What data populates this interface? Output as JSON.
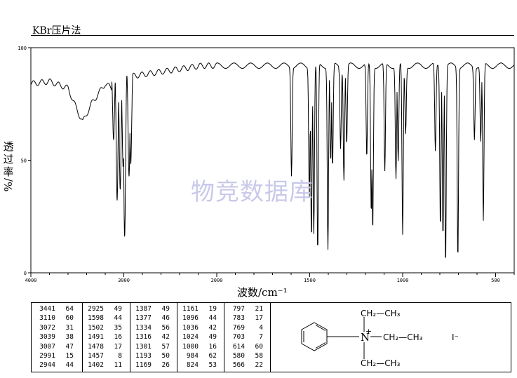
{
  "header": {
    "method": "KBr压片法"
  },
  "watermark": "物竞数据库",
  "chart_data": {
    "type": "line",
    "title": "",
    "xlabel": "波数/cm⁻¹",
    "ylabel_chars": [
      "透",
      "过",
      "率"
    ],
    "ylabel_unit": "%/",
    "xlim": [
      4000,
      400
    ],
    "ylim": [
      0,
      100
    ],
    "x_ticks": [
      "4000",
      "3000",
      "2000",
      "1500",
      "1000",
      "500"
    ],
    "y_ticks": [
      "0",
      "50",
      "100"
    ],
    "x_breaks": [
      2000
    ],
    "grid": false,
    "legend": "none",
    "peaks": [
      {
        "wn": 3441,
        "t": 64
      },
      {
        "wn": 3110,
        "t": 60
      },
      {
        "wn": 3072,
        "t": 31
      },
      {
        "wn": 3039,
        "t": 38
      },
      {
        "wn": 3007,
        "t": 47
      },
      {
        "wn": 2991,
        "t": 15
      },
      {
        "wn": 2944,
        "t": 44
      },
      {
        "wn": 2925,
        "t": 49
      },
      {
        "wn": 1598,
        "t": 44
      },
      {
        "wn": 1502,
        "t": 35
      },
      {
        "wn": 1491,
        "t": 16
      },
      {
        "wn": 1478,
        "t": 17
      },
      {
        "wn": 1457,
        "t": 8
      },
      {
        "wn": 1402,
        "t": 11
      },
      {
        "wn": 1387,
        "t": 49
      },
      {
        "wn": 1377,
        "t": 46
      },
      {
        "wn": 1334,
        "t": 56
      },
      {
        "wn": 1316,
        "t": 42
      },
      {
        "wn": 1301,
        "t": 57
      },
      {
        "wn": 1193,
        "t": 50
      },
      {
        "wn": 1169,
        "t": 26
      },
      {
        "wn": 1161,
        "t": 19
      },
      {
        "wn": 1096,
        "t": 44
      },
      {
        "wn": 1036,
        "t": 42
      },
      {
        "wn": 1024,
        "t": 49
      },
      {
        "wn": 1000,
        "t": 16
      },
      {
        "wn": 984,
        "t": 62
      },
      {
        "wn": 824,
        "t": 53
      },
      {
        "wn": 797,
        "t": 21
      },
      {
        "wn": 783,
        "t": 17
      },
      {
        "wn": 769,
        "t": 4
      },
      {
        "wn": 703,
        "t": 7
      },
      {
        "wn": 614,
        "t": 60
      },
      {
        "wn": 580,
        "t": 58
      },
      {
        "wn": 566,
        "t": 22
      }
    ],
    "baseline": [
      [
        4000,
        84
      ],
      [
        3800,
        85
      ],
      [
        3600,
        82
      ],
      [
        3500,
        72
      ],
      [
        3441,
        67
      ],
      [
        3350,
        75
      ],
      [
        3200,
        84
      ],
      [
        3130,
        82
      ]
    ]
  },
  "peak_table": {
    "columns": [
      [
        [
          "3441",
          "64"
        ],
        [
          "3110",
          "60"
        ],
        [
          "3072",
          "31"
        ],
        [
          "3039",
          "38"
        ],
        [
          "3007",
          "47"
        ],
        [
          "2991",
          "15"
        ],
        [
          "2944",
          "44"
        ]
      ],
      [
        [
          "2925",
          "49"
        ],
        [
          "1598",
          "44"
        ],
        [
          "1502",
          "35"
        ],
        [
          "1491",
          "16"
        ],
        [
          "1478",
          "17"
        ],
        [
          "1457",
          "8"
        ],
        [
          "1402",
          "11"
        ]
      ],
      [
        [
          "1387",
          "49"
        ],
        [
          "1377",
          "46"
        ],
        [
          "1334",
          "56"
        ],
        [
          "1316",
          "42"
        ],
        [
          "1301",
          "57"
        ],
        [
          "1193",
          "50"
        ],
        [
          "1169",
          "26"
        ]
      ],
      [
        [
          "1161",
          "19"
        ],
        [
          "1096",
          "44"
        ],
        [
          "1036",
          "42"
        ],
        [
          "1024",
          "49"
        ],
        [
          "1000",
          "16"
        ],
        [
          "984",
          "62"
        ],
        [
          "824",
          "53"
        ]
      ],
      [
        [
          "797",
          "21"
        ],
        [
          "783",
          "17"
        ],
        [
          "769",
          "4"
        ],
        [
          "703",
          "7"
        ],
        [
          "614",
          "60"
        ],
        [
          "580",
          "58"
        ],
        [
          "566",
          "22"
        ]
      ]
    ]
  },
  "structure": {
    "top_chain": "CH₂—CH₃",
    "mid_chain": "CH₂—CH₃",
    "bottom_chain": "CH₂—CH₃",
    "n_label": "N",
    "charge": "+",
    "anion": "I⁻"
  }
}
